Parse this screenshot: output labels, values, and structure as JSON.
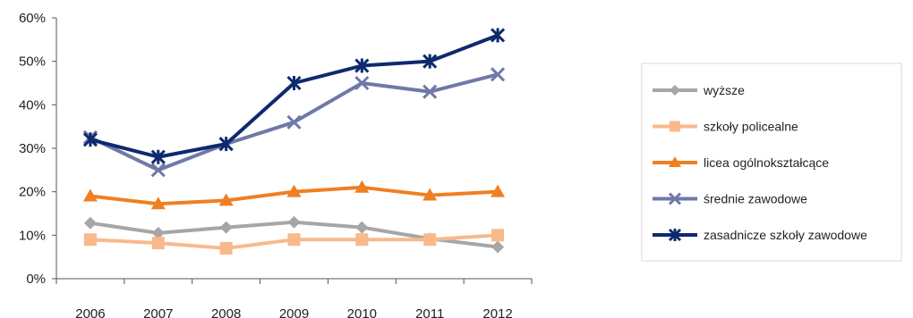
{
  "chart_data": {
    "type": "line",
    "title": "",
    "xlabel": "",
    "ylabel": "",
    "x": [
      "2006",
      "2007",
      "2008",
      "2009",
      "2010",
      "2011",
      "2012"
    ],
    "ylim": [
      0,
      60
    ],
    "yticks": [
      "0%",
      "10%",
      "20%",
      "30%",
      "40%",
      "50%",
      "60%"
    ],
    "grid": false,
    "legend_position": "right",
    "series": [
      {
        "name": "wyższe",
        "color": "#a6a6a6",
        "marker": "diamond",
        "values": [
          12.8,
          10.5,
          11.8,
          13,
          11.8,
          9.2,
          7.3
        ]
      },
      {
        "name": "szkoły policealne",
        "color": "#f9b98c",
        "marker": "square",
        "values": [
          9,
          8.2,
          7,
          9,
          9,
          9,
          10
        ]
      },
      {
        "name": "licea ogólnokształcące",
        "color": "#f07f22",
        "marker": "triangle",
        "values": [
          19,
          17.2,
          18,
          20,
          21,
          19.2,
          20
        ]
      },
      {
        "name": "średnie zawodowe",
        "color": "#6f79a8",
        "marker": "x",
        "values": [
          32.5,
          25,
          31,
          36,
          45,
          43,
          47
        ]
      },
      {
        "name": "zasadnicze szkoły zawodowe",
        "color": "#0e2a6e",
        "marker": "star",
        "values": [
          32,
          28,
          31,
          45,
          49,
          50,
          56
        ]
      }
    ]
  }
}
